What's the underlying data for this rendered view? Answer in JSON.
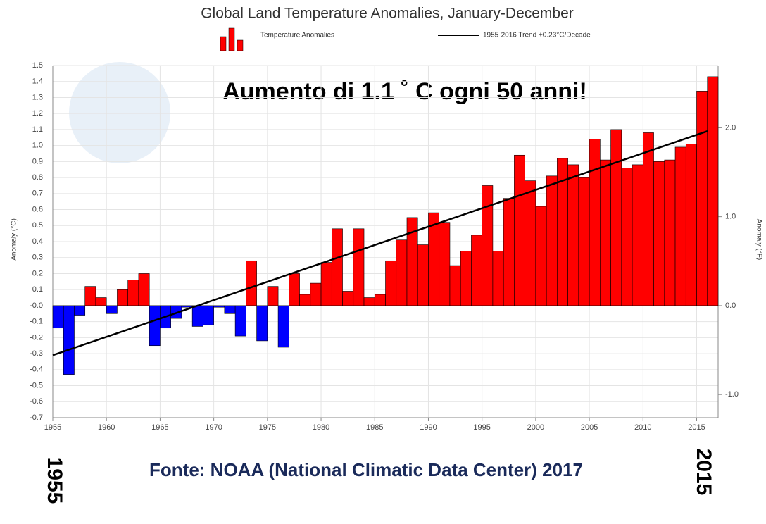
{
  "chart_data": {
    "type": "bar",
    "title": "Global Land Temperature Anomalies, January-December",
    "y_label": "Anomaly (°C)",
    "y2_label": "Anomaly (°F)",
    "x": [
      1955,
      1956,
      1957,
      1958,
      1959,
      1960,
      1961,
      1962,
      1963,
      1964,
      1965,
      1966,
      1967,
      1968,
      1969,
      1970,
      1971,
      1972,
      1973,
      1974,
      1975,
      1976,
      1977,
      1978,
      1979,
      1980,
      1981,
      1982,
      1983,
      1984,
      1985,
      1986,
      1987,
      1988,
      1989,
      1990,
      1991,
      1992,
      1993,
      1994,
      1995,
      1996,
      1997,
      1998,
      1999,
      2000,
      2001,
      2002,
      2003,
      2004,
      2005,
      2006,
      2007,
      2008,
      2009,
      2010,
      2011,
      2012,
      2013,
      2014,
      2015,
      2016
    ],
    "series": [
      {
        "name": "Temperature Anomalies",
        "color": "#ff0000",
        "negative_color": "#0000ff",
        "values": [
          -0.14,
          -0.43,
          -0.06,
          0.12,
          0.05,
          -0.05,
          0.1,
          0.16,
          0.2,
          -0.25,
          -0.14,
          -0.08,
          -0.01,
          -0.13,
          -0.12,
          -0.01,
          -0.05,
          -0.19,
          0.28,
          -0.22,
          0.12,
          -0.26,
          0.2,
          0.07,
          0.14,
          0.27,
          0.48,
          0.09,
          0.48,
          0.05,
          0.07,
          0.28,
          0.41,
          0.55,
          0.38,
          0.58,
          0.52,
          0.25,
          0.34,
          0.44,
          0.75,
          0.34,
          0.67,
          0.94,
          0.78,
          0.62,
          0.81,
          0.92,
          0.88,
          0.8,
          1.04,
          0.91,
          1.1,
          0.86,
          0.88,
          1.08,
          0.9,
          0.91,
          0.99,
          1.01,
          1.34,
          1.43
        ]
      }
    ],
    "trend": {
      "name": "1955-2016 Trend +0.23°C/Decade",
      "color": "#000000",
      "x": [
        1955,
        2016
      ],
      "values": [
        -0.31,
        1.09
      ]
    },
    "xlim": [
      1955,
      2017
    ],
    "xticks": [
      1955,
      1960,
      1965,
      1970,
      1975,
      1980,
      1985,
      1990,
      1995,
      2000,
      2005,
      2010,
      2015
    ],
    "ylim": [
      -0.7,
      1.5
    ],
    "yticks": [
      -0.7,
      -0.6,
      -0.5,
      -0.4,
      -0.3,
      -0.2,
      -0.1,
      {
        "value": 0,
        "label": "-0.0"
      },
      0.1,
      0.2,
      0.3,
      0.4,
      0.5,
      0.6,
      0.7,
      0.8,
      0.9,
      {
        "value": 1.0,
        "label": "1.0"
      },
      1.1,
      1.2,
      1.3,
      1.4,
      1.5
    ],
    "y2lim": [
      -1.26,
      2.7
    ],
    "y2ticks": [
      {
        "value": -1.0,
        "label": "-1.0"
      },
      {
        "value": 0,
        "label": "0.0"
      },
      {
        "value": 1.0,
        "label": "1.0"
      },
      {
        "value": 2.0,
        "label": "2.0"
      }
    ],
    "grid": true,
    "annotations": [
      "Aumento di 1.1 ˚ C ogni 50 anni!",
      "Fonte: NOAA (National Climatic Data Center) 2017",
      "1955",
      "2015"
    ]
  }
}
